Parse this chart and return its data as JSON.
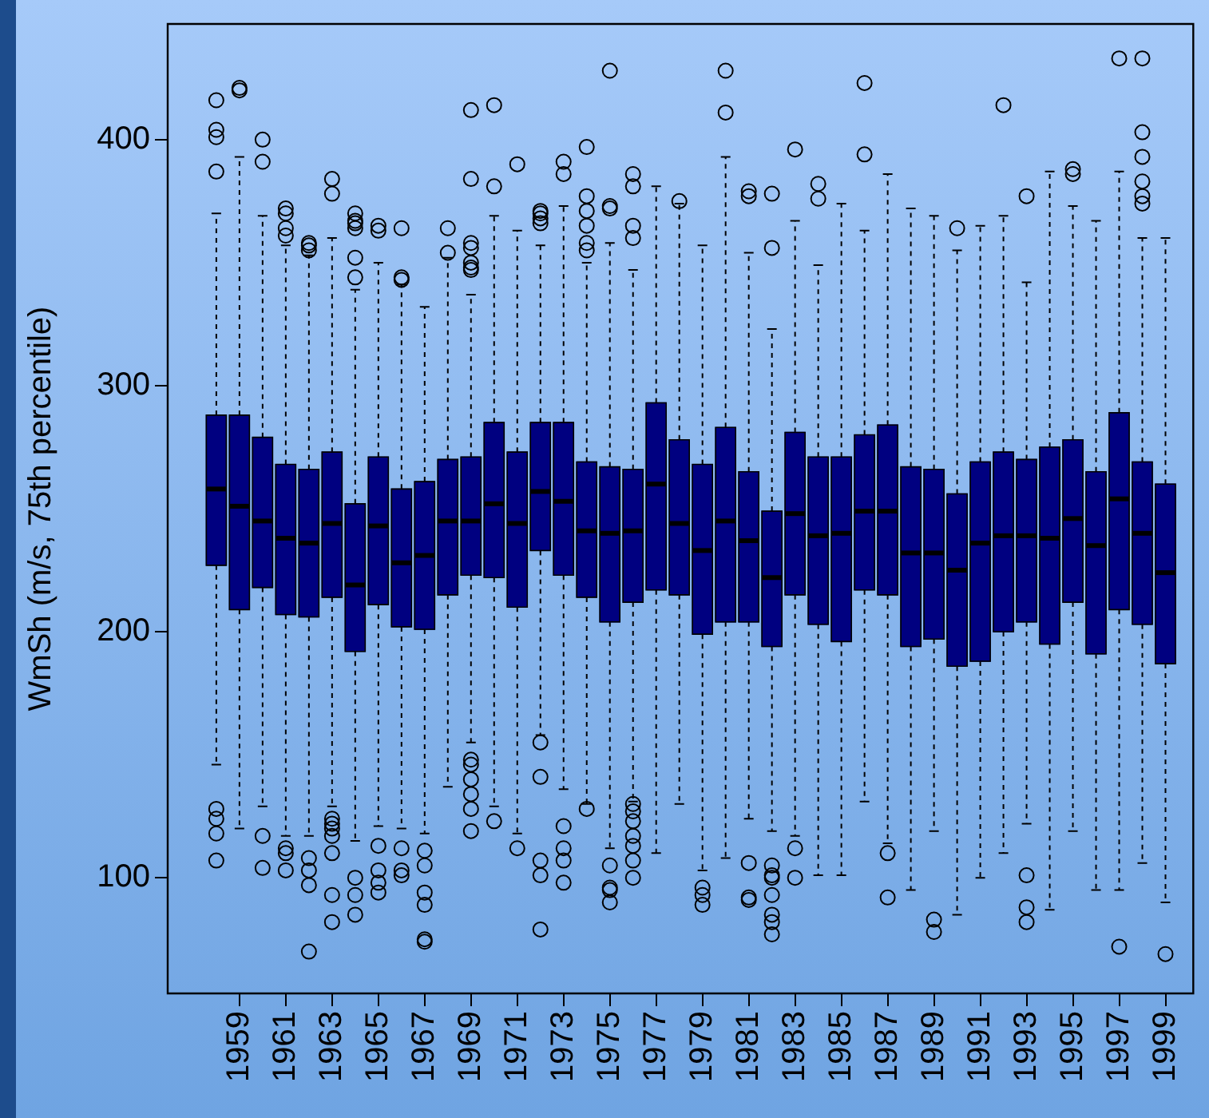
{
  "chart_data": {
    "type": "box",
    "ylabel": "WmSh (m/s, 75th percentile)",
    "color": "#000080",
    "categories": [
      null,
      "1959",
      null,
      "1961",
      null,
      "1963",
      null,
      "1965",
      null,
      "1967",
      null,
      "1969",
      null,
      "1971",
      null,
      "1973",
      null,
      "1975",
      null,
      "1977",
      null,
      "1979",
      null,
      "1981",
      null,
      "1983",
      null,
      "1985",
      null,
      "1987",
      null,
      "1989",
      null,
      "1991",
      null,
      "1993",
      null,
      "1995",
      null,
      "1997",
      null,
      "1999"
    ],
    "ylim": [
      53,
      447
    ],
    "yticks": [
      100,
      200,
      300,
      400
    ],
    "boxes": [
      {
        "low": 146,
        "q1": 227,
        "median": 258,
        "q3": 288,
        "high": 370,
        "outliers": [
          416,
          404,
          401,
          387,
          128,
          124,
          118,
          107
        ]
      },
      {
        "low": 120,
        "q1": 209,
        "median": 251,
        "q3": 288,
        "high": 393,
        "outliers": [
          421,
          420
        ]
      },
      {
        "low": 129,
        "q1": 218,
        "median": 245,
        "q3": 279,
        "high": 369,
        "outliers": [
          400,
          391,
          117,
          104
        ]
      },
      {
        "low": 117,
        "q1": 207,
        "median": 238,
        "q3": 268,
        "high": 357,
        "outliers": [
          372,
          370,
          364,
          361,
          112,
          110,
          103
        ]
      },
      {
        "low": 117,
        "q1": 206,
        "median": 236,
        "q3": 266,
        "high": 353,
        "outliers": [
          358,
          357,
          355,
          108,
          103,
          97,
          70
        ]
      },
      {
        "low": 129,
        "q1": 214,
        "median": 244,
        "q3": 273,
        "high": 360,
        "outliers": [
          384,
          378,
          124,
          122,
          120,
          117,
          110,
          93,
          82
        ]
      },
      {
        "low": 115,
        "q1": 192,
        "median": 219,
        "q3": 252,
        "high": 339,
        "outliers": [
          370,
          367,
          366,
          364,
          352,
          344,
          100,
          93,
          85
        ]
      },
      {
        "low": 121,
        "q1": 211,
        "median": 243,
        "q3": 271,
        "high": 350,
        "outliers": [
          365,
          363,
          113,
          103,
          98,
          94
        ]
      },
      {
        "low": 120,
        "q1": 202,
        "median": 228,
        "q3": 258,
        "high": 341,
        "outliers": [
          364,
          344,
          343,
          112,
          103,
          101
        ]
      },
      {
        "low": 118,
        "q1": 201,
        "median": 231,
        "q3": 261,
        "high": 332,
        "outliers": [
          111,
          105,
          94,
          89,
          75,
          74
        ]
      },
      {
        "low": 137,
        "q1": 215,
        "median": 245,
        "q3": 270,
        "high": 352,
        "outliers": [
          364,
          354
        ]
      },
      {
        "low": 155,
        "q1": 223,
        "median": 245,
        "q3": 271,
        "high": 337,
        "outliers": [
          412,
          384,
          358,
          356,
          350,
          348,
          347,
          148,
          146,
          140,
          134,
          128,
          119
        ]
      },
      {
        "low": 129,
        "q1": 222,
        "median": 252,
        "q3": 285,
        "high": 369,
        "outliers": [
          414,
          381,
          123
        ]
      },
      {
        "low": 118,
        "q1": 210,
        "median": 244,
        "q3": 273,
        "high": 363,
        "outliers": [
          390,
          112
        ]
      },
      {
        "low": 158,
        "q1": 233,
        "median": 257,
        "q3": 285,
        "high": 357,
        "outliers": [
          371,
          370,
          368,
          366,
          155,
          141,
          107,
          101,
          79
        ]
      },
      {
        "low": 136,
        "q1": 223,
        "median": 253,
        "q3": 285,
        "high": 373,
        "outliers": [
          391,
          386,
          121,
          112,
          107,
          98
        ]
      },
      {
        "low": 130,
        "q1": 214,
        "median": 241,
        "q3": 269,
        "high": 350,
        "outliers": [
          397,
          377,
          371,
          365,
          358,
          355,
          128
        ]
      },
      {
        "low": 112,
        "q1": 204,
        "median": 240,
        "q3": 267,
        "high": 358,
        "outliers": [
          428,
          373,
          372,
          105,
          96,
          95,
          90
        ]
      },
      {
        "low": 131,
        "q1": 212,
        "median": 241,
        "q3": 266,
        "high": 347,
        "outliers": [
          386,
          381,
          365,
          360,
          130,
          127,
          123,
          117,
          113,
          107,
          100
        ]
      },
      {
        "low": 110,
        "q1": 217,
        "median": 260,
        "q3": 293,
        "high": 381
      },
      {
        "low": 130,
        "q1": 215,
        "median": 244,
        "q3": 278,
        "high": 374,
        "outliers": [
          375
        ]
      },
      {
        "low": 103,
        "q1": 199,
        "median": 233,
        "q3": 268,
        "high": 357,
        "outliers": [
          96,
          93,
          89
        ]
      },
      {
        "low": 108,
        "q1": 204,
        "median": 245,
        "q3": 283,
        "high": 393,
        "outliers": [
          428,
          411
        ]
      },
      {
        "low": 124,
        "q1": 204,
        "median": 237,
        "q3": 265,
        "high": 354,
        "outliers": [
          379,
          377,
          106,
          92,
          91
        ]
      },
      {
        "low": 119,
        "q1": 194,
        "median": 222,
        "q3": 249,
        "high": 323,
        "outliers": [
          378,
          356,
          105,
          101,
          100,
          93,
          85,
          82,
          77
        ]
      },
      {
        "low": 117,
        "q1": 215,
        "median": 248,
        "q3": 281,
        "high": 367,
        "outliers": [
          396,
          112,
          100
        ]
      },
      {
        "low": 101,
        "q1": 203,
        "median": 239,
        "q3": 271,
        "high": 349,
        "outliers": [
          382,
          376
        ]
      },
      {
        "low": 101,
        "q1": 196,
        "median": 240,
        "q3": 271,
        "high": 374
      },
      {
        "low": 131,
        "q1": 217,
        "median": 249,
        "q3": 280,
        "high": 363,
        "outliers": [
          423,
          394
        ]
      },
      {
        "low": 114,
        "q1": 215,
        "median": 249,
        "q3": 284,
        "high": 386,
        "outliers": [
          110,
          92
        ]
      },
      {
        "low": 95,
        "q1": 194,
        "median": 232,
        "q3": 267,
        "high": 372
      },
      {
        "low": 119,
        "q1": 197,
        "median": 232,
        "q3": 266,
        "high": 369,
        "outliers": [
          83,
          78
        ]
      },
      {
        "low": 85,
        "q1": 186,
        "median": 225,
        "q3": 256,
        "high": 355,
        "outliers": [
          364
        ]
      },
      {
        "low": 100,
        "q1": 188,
        "median": 236,
        "q3": 269,
        "high": 365
      },
      {
        "low": 110,
        "q1": 200,
        "median": 239,
        "q3": 273,
        "high": 369,
        "outliers": [
          414
        ]
      },
      {
        "low": 122,
        "q1": 204,
        "median": 239,
        "q3": 270,
        "high": 342,
        "outliers": [
          377,
          101,
          88,
          82
        ]
      },
      {
        "low": 87,
        "q1": 195,
        "median": 238,
        "q3": 275,
        "high": 387
      },
      {
        "low": 119,
        "q1": 212,
        "median": 246,
        "q3": 278,
        "high": 373,
        "outliers": [
          388,
          386
        ]
      },
      {
        "low": 95,
        "q1": 191,
        "median": 235,
        "q3": 265,
        "high": 367
      },
      {
        "low": 95,
        "q1": 209,
        "median": 254,
        "q3": 289,
        "high": 387,
        "outliers": [
          433,
          72
        ]
      },
      {
        "low": 106,
        "q1": 203,
        "median": 240,
        "q3": 269,
        "high": 360,
        "outliers": [
          433,
          403,
          393,
          383,
          377,
          374
        ]
      },
      {
        "low": 90,
        "q1": 187,
        "median": 224,
        "q3": 260,
        "high": 360,
        "outliers": [
          69
        ]
      }
    ]
  }
}
